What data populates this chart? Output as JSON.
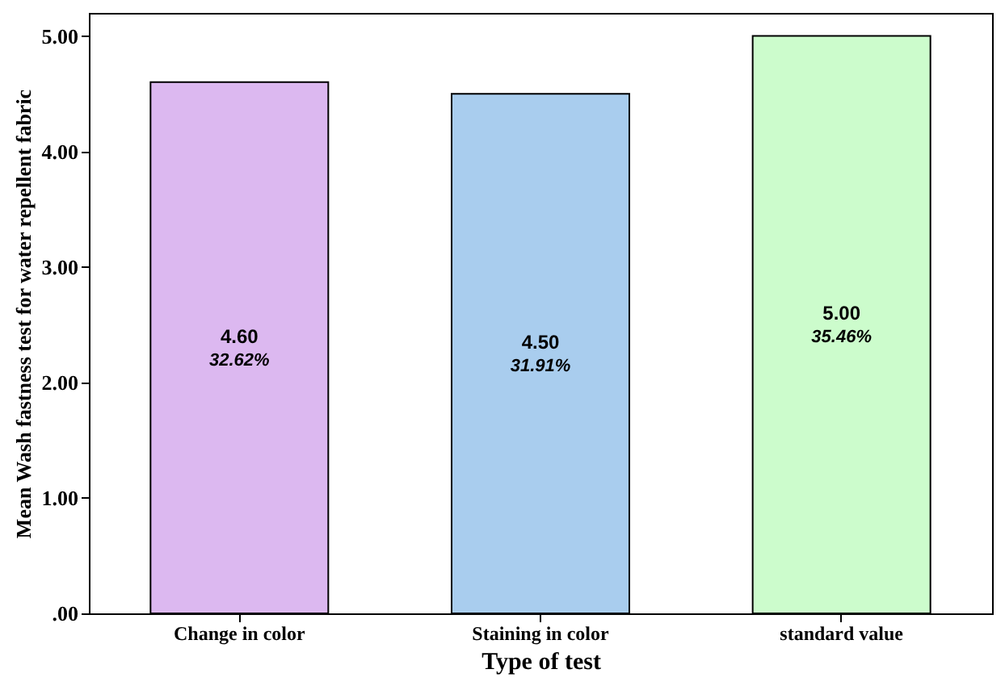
{
  "chart_data": {
    "type": "bar",
    "xlabel": "Type of  test",
    "ylabel": "Mean Wash fastness test for water repellent fabric",
    "categories": [
      "Change in color",
      "Staining in color",
      "standard value"
    ],
    "values": [
      4.6,
      4.5,
      5.0
    ],
    "colors": [
      "#dcb8f0",
      "#a9cdee",
      "#ccfccc"
    ],
    "value_labels": [
      "4.60\n32.62%",
      "4.50\n31.91%",
      "5.00\n35.46%"
    ],
    "ylim": [
      0,
      5.2
    ],
    "yticks": [
      {
        "value": 0,
        "label": ".00"
      },
      {
        "value": 1,
        "label": "1.00"
      },
      {
        "value": 2,
        "label": "2.00"
      },
      {
        "value": 3,
        "label": "3.00"
      },
      {
        "value": 4,
        "label": "4.00"
      },
      {
        "value": 5,
        "label": "5.00"
      }
    ],
    "grid": false,
    "legend": false
  }
}
